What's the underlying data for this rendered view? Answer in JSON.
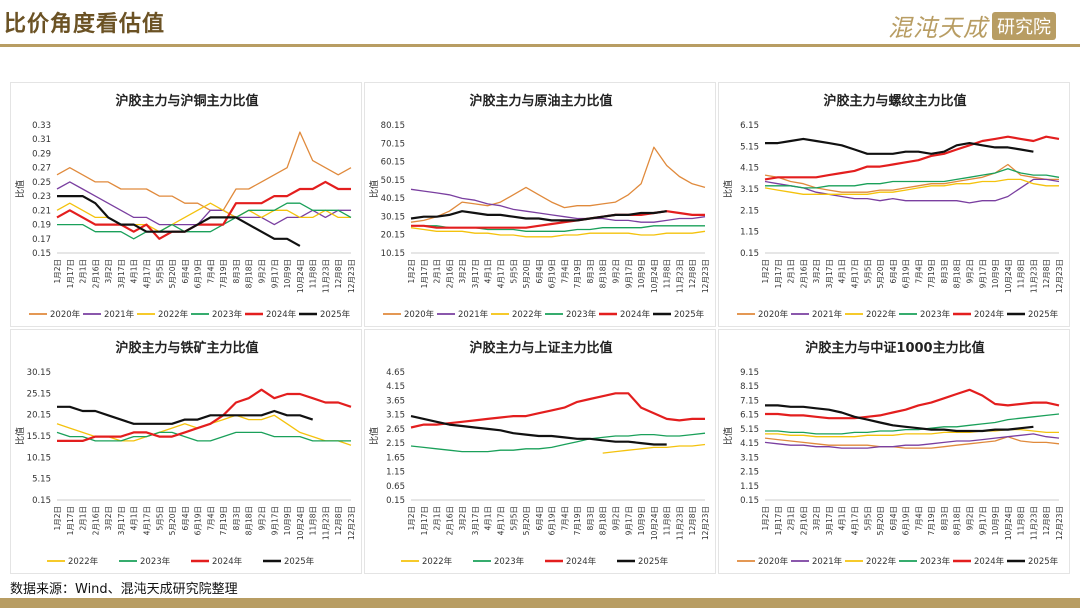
{
  "header": {
    "title": "比价角度看估值",
    "brand_name": "混沌天成",
    "brand_box": "研究院"
  },
  "source": "数据来源：Wind、混沌天成研究院整理",
  "series_colors": {
    "2020年": "#e08a3c",
    "2021年": "#7a3fa0",
    "2022年": "#f4c20d",
    "2023年": "#1aa05a",
    "2024年": "#e31e1e",
    "2025年": "#111111"
  },
  "x_tick_labels": [
    "1月2日",
    "1月17日",
    "2月1日",
    "2月16日",
    "3月2日",
    "3月17日",
    "4月1日",
    "4月17日",
    "5月5日",
    "5月20日",
    "6月4日",
    "6月19日",
    "7月4日",
    "7月19日",
    "8月3日",
    "8月18日",
    "9月2日",
    "9月17日",
    "10月9日",
    "10月24日",
    "11月8日",
    "11月23日",
    "12月8日",
    "12月23日"
  ],
  "chart_data": [
    {
      "id": "copper",
      "type": "line",
      "title": "沪胶主力与沪铜主力比值",
      "ylabel": "比值",
      "ylim": [
        0.15,
        0.33
      ],
      "yticks": [
        "0.33",
        "0.31",
        "0.29",
        "0.27",
        "0.25",
        "0.23",
        "0.21",
        "0.19",
        "0.17",
        "0.15"
      ],
      "series": [
        {
          "name": "2020年",
          "values": [
            0.26,
            0.27,
            0.26,
            0.25,
            0.25,
            0.24,
            0.24,
            0.24,
            0.23,
            0.23,
            0.22,
            0.22,
            0.21,
            0.21,
            0.24,
            0.24,
            0.25,
            0.26,
            0.27,
            0.32,
            0.28,
            0.27,
            0.26,
            0.27
          ]
        },
        {
          "name": "2021年",
          "values": [
            0.24,
            0.25,
            0.24,
            0.23,
            0.22,
            0.21,
            0.2,
            0.2,
            0.19,
            0.19,
            0.19,
            0.19,
            0.21,
            0.21,
            0.2,
            0.2,
            0.2,
            0.19,
            0.2,
            0.2,
            0.21,
            0.2,
            0.21,
            0.21
          ]
        },
        {
          "name": "2022年",
          "values": [
            0.21,
            0.22,
            0.21,
            0.2,
            0.2,
            0.19,
            0.19,
            0.19,
            0.18,
            0.19,
            0.2,
            0.21,
            0.22,
            0.21,
            0.2,
            0.21,
            0.2,
            0.21,
            0.21,
            0.2,
            0.2,
            0.21,
            0.2,
            0.2
          ]
        },
        {
          "name": "2023年",
          "values": [
            0.19,
            0.19,
            0.19,
            0.18,
            0.18,
            0.18,
            0.17,
            0.18,
            0.18,
            0.19,
            0.18,
            0.18,
            0.18,
            0.19,
            0.2,
            0.21,
            0.21,
            0.21,
            0.22,
            0.22,
            0.21,
            0.21,
            0.21,
            0.2
          ]
        },
        {
          "name": "2024年",
          "values": [
            0.2,
            0.21,
            0.2,
            0.19,
            0.19,
            0.19,
            0.18,
            0.19,
            0.17,
            0.18,
            0.18,
            0.19,
            0.19,
            0.19,
            0.22,
            0.22,
            0.22,
            0.23,
            0.23,
            0.24,
            0.24,
            0.25,
            0.24,
            0.24
          ]
        },
        {
          "name": "2025年",
          "values": [
            0.23,
            0.23,
            0.23,
            0.22,
            0.2,
            0.19,
            0.19,
            0.18,
            0.18,
            0.18,
            0.18,
            0.19,
            0.2,
            0.2,
            0.2,
            0.19,
            0.18,
            0.17,
            0.17,
            0.16,
            null,
            null,
            null,
            null
          ]
        }
      ]
    },
    {
      "id": "crude",
      "type": "line",
      "title": "沪胶主力与原油主力比值",
      "ylabel": "比值",
      "ylim": [
        10.15,
        80.15
      ],
      "yticks": [
        "80.15",
        "70.15",
        "60.15",
        "50.15",
        "40.15",
        "30.15",
        "20.15",
        "10.15"
      ],
      "series": [
        {
          "name": "2020年",
          "values": [
            27,
            28,
            30,
            33,
            38,
            37,
            36,
            38,
            42,
            46,
            42,
            38,
            35,
            36,
            36,
            37,
            38,
            42,
            48,
            68,
            58,
            52,
            48,
            46
          ]
        },
        {
          "name": "2021年",
          "values": [
            45,
            44,
            43,
            42,
            40,
            39,
            37,
            36,
            34,
            33,
            32,
            31,
            30,
            29,
            29,
            29,
            28,
            28,
            27,
            27,
            28,
            29,
            29,
            30
          ]
        },
        {
          "name": "2022年",
          "values": [
            24,
            23,
            22,
            22,
            22,
            21,
            21,
            20,
            20,
            19,
            19,
            19,
            20,
            20,
            21,
            21,
            21,
            21,
            20,
            20,
            21,
            21,
            21,
            22
          ]
        },
        {
          "name": "2023年",
          "values": [
            25,
            25,
            25,
            24,
            24,
            24,
            23,
            23,
            23,
            22,
            22,
            22,
            22,
            23,
            23,
            24,
            24,
            24,
            24,
            25,
            25,
            25,
            25,
            25
          ]
        },
        {
          "name": "2024年",
          "values": [
            25,
            25,
            24,
            24,
            24,
            24,
            24,
            24,
            24,
            24,
            25,
            26,
            27,
            28,
            29,
            30,
            31,
            31,
            31,
            32,
            33,
            32,
            31,
            31
          ]
        },
        {
          "name": "2025年",
          "values": [
            29,
            30,
            30,
            31,
            33,
            32,
            31,
            31,
            30,
            29,
            29,
            28,
            28,
            28,
            29,
            30,
            31,
            31,
            32,
            32,
            33,
            null,
            null,
            null
          ]
        }
      ]
    },
    {
      "id": "rebar",
      "type": "line",
      "title": "沪胶主力与螺纹主力比值",
      "ylabel": "比值",
      "ylim": [
        0.15,
        6.15
      ],
      "yticks": [
        "6.15",
        "5.15",
        "4.15",
        "3.15",
        "2.15",
        "1.15",
        "0.15"
      ],
      "series": [
        {
          "name": "2020年",
          "values": [
            3.8,
            3.7,
            3.5,
            3.4,
            3.2,
            3.1,
            3.0,
            3.0,
            3.0,
            3.1,
            3.1,
            3.2,
            3.3,
            3.4,
            3.4,
            3.5,
            3.6,
            3.7,
            3.9,
            4.3,
            3.8,
            3.7,
            3.6,
            3.6
          ]
        },
        {
          "name": "2021年",
          "values": [
            3.5,
            3.4,
            3.3,
            3.2,
            3.0,
            2.9,
            2.8,
            2.7,
            2.7,
            2.6,
            2.7,
            2.6,
            2.6,
            2.6,
            2.6,
            2.6,
            2.5,
            2.6,
            2.6,
            2.8,
            3.2,
            3.6,
            3.6,
            3.5
          ]
        },
        {
          "name": "2022年",
          "values": [
            3.2,
            3.1,
            3.0,
            2.9,
            2.9,
            2.9,
            2.9,
            2.9,
            2.9,
            3.0,
            3.0,
            3.1,
            3.2,
            3.3,
            3.3,
            3.4,
            3.4,
            3.5,
            3.5,
            3.6,
            3.6,
            3.4,
            3.3,
            3.3
          ]
        },
        {
          "name": "2023年",
          "values": [
            3.3,
            3.3,
            3.3,
            3.2,
            3.2,
            3.3,
            3.3,
            3.3,
            3.4,
            3.4,
            3.5,
            3.5,
            3.5,
            3.5,
            3.5,
            3.6,
            3.7,
            3.8,
            3.9,
            4.1,
            3.9,
            3.8,
            3.8,
            3.7
          ]
        },
        {
          "name": "2024年",
          "values": [
            3.6,
            3.7,
            3.7,
            3.7,
            3.7,
            3.8,
            3.9,
            4.0,
            4.2,
            4.2,
            4.3,
            4.4,
            4.5,
            4.7,
            4.8,
            5.0,
            5.2,
            5.4,
            5.5,
            5.6,
            5.5,
            5.4,
            5.6,
            5.5
          ]
        },
        {
          "name": "2025年",
          "values": [
            5.3,
            5.3,
            5.4,
            5.5,
            5.4,
            5.3,
            5.2,
            5.0,
            4.8,
            4.8,
            4.8,
            4.9,
            4.9,
            4.8,
            4.9,
            5.2,
            5.3,
            5.2,
            5.1,
            5.1,
            5.0,
            4.9,
            null,
            null
          ]
        }
      ]
    },
    {
      "id": "iron",
      "type": "line",
      "title": "沪胶主力与铁矿主力比值",
      "ylabel": "比值",
      "ylim": [
        0.15,
        30.15
      ],
      "yticks": [
        "30.15",
        "25.15",
        "20.15",
        "15.15",
        "10.15",
        "5.15",
        "0.15"
      ],
      "series": [
        {
          "name": "2022年",
          "values": [
            18,
            17,
            16,
            15,
            15,
            14,
            14,
            15,
            16,
            17,
            18,
            17,
            18,
            19,
            20,
            19,
            19,
            20,
            18,
            16,
            15,
            14,
            14,
            13
          ]
        },
        {
          "name": "2023年",
          "values": [
            16,
            15,
            15,
            14,
            14,
            14,
            15,
            15,
            16,
            16,
            15,
            14,
            14,
            15,
            16,
            16,
            16,
            15,
            15,
            15,
            14,
            14,
            14,
            14
          ]
        },
        {
          "name": "2024年",
          "values": [
            14,
            14,
            14,
            15,
            15,
            15,
            16,
            16,
            15,
            15,
            16,
            17,
            18,
            20,
            23,
            24,
            26,
            24,
            25,
            25,
            24,
            23,
            23,
            22
          ]
        },
        {
          "name": "2025年",
          "values": [
            22,
            22,
            21,
            21,
            20,
            19,
            18,
            18,
            18,
            18,
            19,
            19,
            20,
            20,
            20,
            20,
            20,
            21,
            20,
            20,
            19,
            null,
            null,
            null
          ]
        }
      ]
    },
    {
      "id": "sse",
      "type": "line",
      "title": "沪胶主力与上证主力比值",
      "ylabel": "比值",
      "ylim": [
        0.15,
        4.65
      ],
      "yticks": [
        "4.65",
        "4.15",
        "3.65",
        "3.15",
        "2.65",
        "2.15",
        "1.65",
        "1.15",
        "0.65",
        "0.15"
      ],
      "series": [
        {
          "name": "2022年",
          "values": [
            null,
            null,
            null,
            null,
            null,
            null,
            null,
            null,
            null,
            null,
            null,
            null,
            null,
            null,
            null,
            1.8,
            1.85,
            1.9,
            1.95,
            2.0,
            2.0,
            2.05,
            2.05,
            2.1
          ]
        },
        {
          "name": "2023年",
          "values": [
            2.05,
            2.0,
            1.95,
            1.9,
            1.85,
            1.85,
            1.85,
            1.9,
            1.9,
            1.95,
            1.95,
            2.0,
            2.1,
            2.2,
            2.3,
            2.35,
            2.4,
            2.4,
            2.45,
            2.45,
            2.4,
            2.4,
            2.45,
            2.5
          ]
        },
        {
          "name": "2024年",
          "values": [
            2.7,
            2.8,
            2.8,
            2.85,
            2.9,
            2.95,
            3.0,
            3.05,
            3.1,
            3.1,
            3.2,
            3.3,
            3.4,
            3.6,
            3.7,
            3.8,
            3.9,
            3.9,
            3.4,
            3.2,
            3.0,
            2.95,
            3.0,
            3.0
          ]
        },
        {
          "name": "2025年",
          "values": [
            3.1,
            3.0,
            2.9,
            2.8,
            2.75,
            2.7,
            2.65,
            2.6,
            2.5,
            2.45,
            2.4,
            2.4,
            2.35,
            2.3,
            2.3,
            2.25,
            2.2,
            2.2,
            2.15,
            2.1,
            2.1,
            null,
            null,
            null
          ]
        }
      ]
    },
    {
      "id": "csi1000",
      "type": "line",
      "title": "沪胶主力与中证1000主力比值",
      "ylabel": "比值",
      "ylim": [
        0.15,
        9.15
      ],
      "yticks": [
        "9.15",
        "8.15",
        "7.15",
        "6.15",
        "5.15",
        "4.15",
        "3.15",
        "2.15",
        "1.15",
        "0.15"
      ],
      "series": [
        {
          "name": "2020年",
          "values": [
            4.5,
            4.4,
            4.3,
            4.2,
            4.1,
            4.0,
            4.0,
            4.0,
            4.0,
            3.9,
            3.9,
            3.8,
            3.8,
            3.8,
            3.9,
            4.0,
            4.1,
            4.2,
            4.3,
            4.6,
            4.3,
            4.2,
            4.2,
            4.1
          ]
        },
        {
          "name": "2021年",
          "values": [
            4.2,
            4.1,
            4.0,
            4.0,
            3.9,
            3.9,
            3.8,
            3.8,
            3.8,
            3.9,
            3.9,
            4.0,
            4.0,
            4.1,
            4.2,
            4.3,
            4.3,
            4.4,
            4.5,
            4.6,
            4.7,
            4.8,
            4.6,
            4.5
          ]
        },
        {
          "name": "2022年",
          "values": [
            4.8,
            4.8,
            4.7,
            4.7,
            4.6,
            4.6,
            4.6,
            4.6,
            4.7,
            4.7,
            4.7,
            4.8,
            4.8,
            4.8,
            4.9,
            4.9,
            4.9,
            5.0,
            5.0,
            5.1,
            5.1,
            5.0,
            4.9,
            4.9
          ]
        },
        {
          "name": "2023年",
          "values": [
            5.0,
            5.0,
            4.9,
            4.9,
            4.8,
            4.8,
            4.8,
            4.9,
            4.9,
            5.0,
            5.0,
            5.1,
            5.1,
            5.2,
            5.3,
            5.3,
            5.4,
            5.5,
            5.6,
            5.8,
            5.9,
            6.0,
            6.1,
            6.2
          ]
        },
        {
          "name": "2024年",
          "values": [
            6.2,
            6.2,
            6.1,
            6.1,
            6.0,
            5.9,
            5.9,
            5.9,
            6.0,
            6.1,
            6.3,
            6.5,
            6.8,
            7.0,
            7.3,
            7.6,
            7.9,
            7.5,
            6.9,
            6.8,
            6.9,
            7.0,
            7.0,
            6.8
          ]
        },
        {
          "name": "2025年",
          "values": [
            6.8,
            6.8,
            6.7,
            6.7,
            6.6,
            6.5,
            6.3,
            6.0,
            5.8,
            5.6,
            5.4,
            5.3,
            5.2,
            5.1,
            5.1,
            5.0,
            5.0,
            5.0,
            5.1,
            5.1,
            5.2,
            5.3,
            null,
            null
          ]
        }
      ]
    }
  ]
}
